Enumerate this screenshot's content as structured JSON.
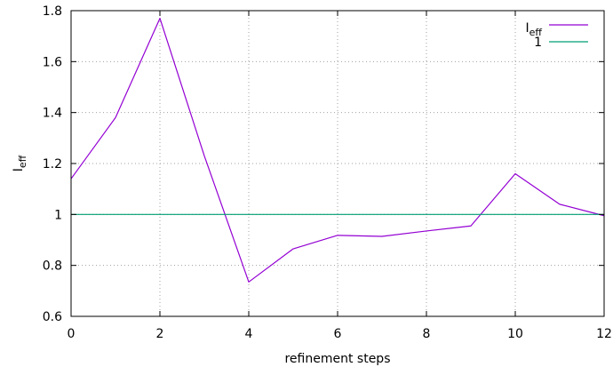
{
  "chart_data": {
    "type": "line",
    "xlabel": "refinement steps",
    "ylabel": "I",
    "ylabel_sub": "eff",
    "xlim": [
      0,
      12
    ],
    "ylim": [
      0.6,
      1.8
    ],
    "xticks": [
      0,
      2,
      4,
      6,
      8,
      10,
      12
    ],
    "yticks": [
      0.6,
      0.8,
      1,
      1.2,
      1.4,
      1.6,
      1.8
    ],
    "xtick_labels": [
      "0",
      "2",
      "4",
      "6",
      "8",
      "10",
      "12"
    ],
    "ytick_labels": [
      "0.6",
      "0.8",
      "1",
      "1.2",
      "1.4",
      "1.6",
      "1.8"
    ],
    "grid": true,
    "legend_position": "top-right",
    "series": [
      {
        "name": "I",
        "name_sub": "eff",
        "color": "#9400d3",
        "x": [
          0,
          1,
          2,
          3,
          4,
          5,
          6,
          7,
          8,
          9,
          10,
          11,
          12
        ],
        "y": [
          1.14,
          1.38,
          1.77,
          1.23,
          0.735,
          0.865,
          0.918,
          0.914,
          0.935,
          0.955,
          1.16,
          1.04,
          0.995
        ]
      },
      {
        "name": "1",
        "color": "#009e73",
        "x": [
          0,
          12
        ],
        "y": [
          1,
          1
        ]
      }
    ]
  }
}
